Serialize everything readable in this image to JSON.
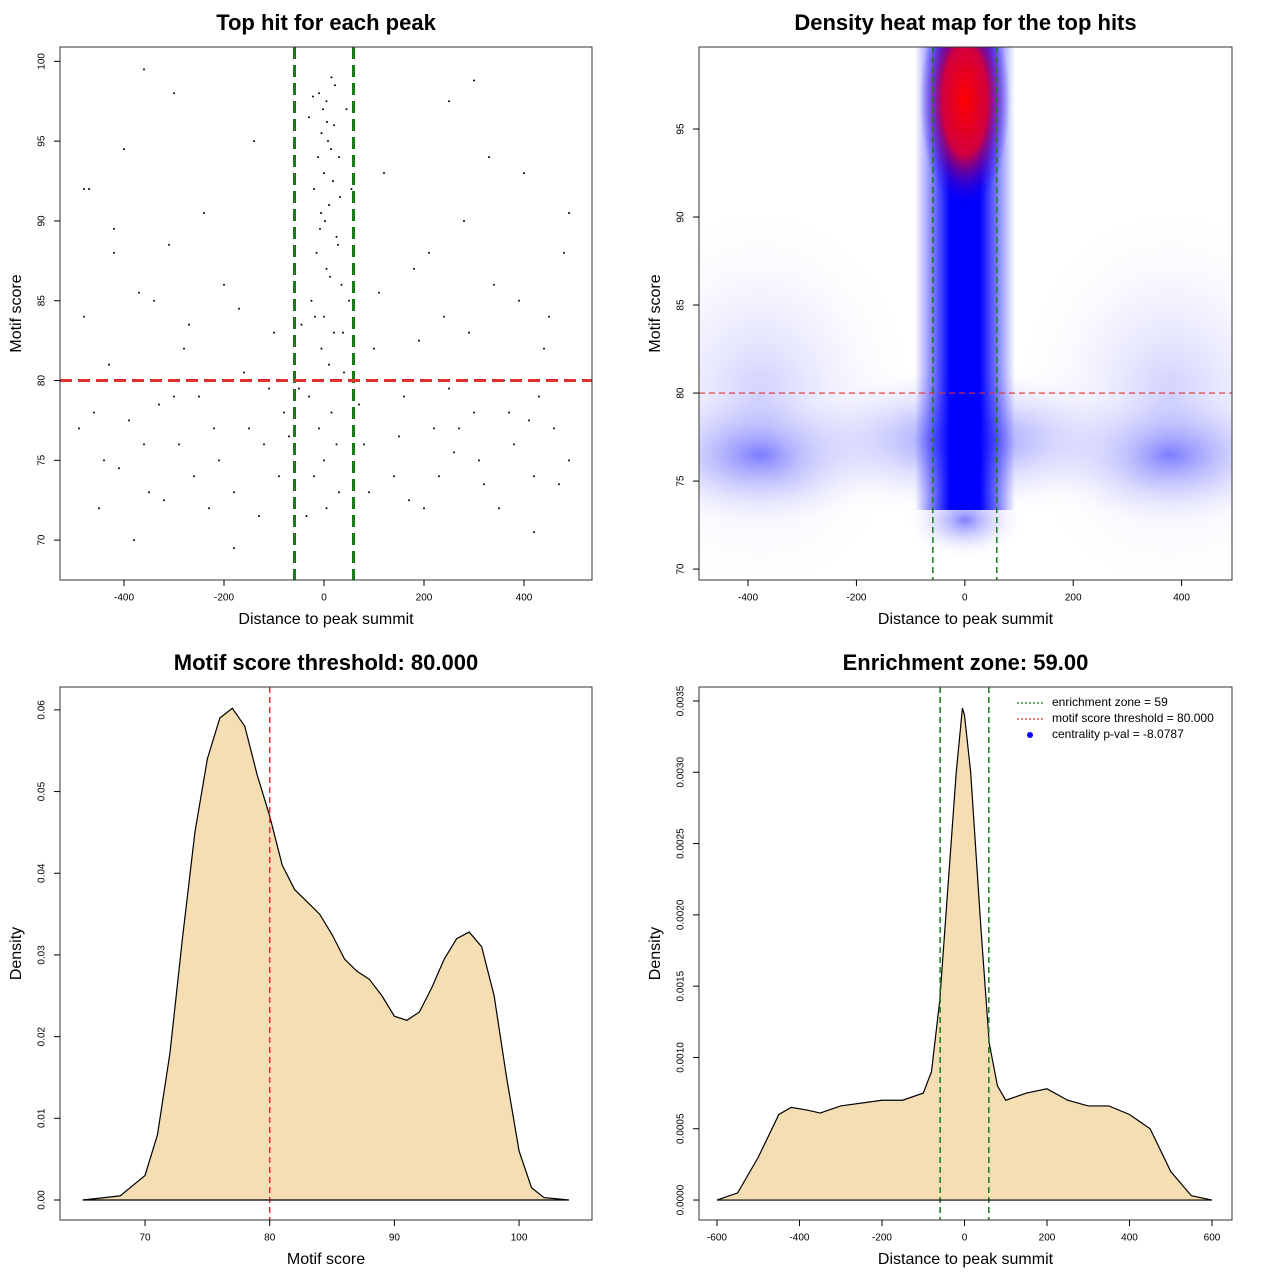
{
  "chart_data": [
    {
      "type": "scatter",
      "title": "Top hit for each peak",
      "x_label": "Distance to peak summit",
      "y_label": "Motif score",
      "xlim": [
        -528,
        536
      ],
      "ylim": [
        67.5,
        100.9
      ],
      "xticks": [
        -400,
        -200,
        0,
        200,
        400
      ],
      "yticks": [
        70,
        75,
        80,
        85,
        90,
        95,
        100
      ],
      "color": "#000000",
      "vlines": [
        -59,
        59
      ],
      "vline_color": "#1a7a1a",
      "hlines": [
        80
      ],
      "hline_color": "#e0302f",
      "x": [
        -10,
        5,
        20,
        -5,
        15,
        0,
        30,
        -20,
        10,
        25,
        -15,
        5,
        35,
        -25,
        0,
        20,
        -5,
        10,
        40,
        -30,
        15,
        -10,
        25,
        0,
        -20,
        30,
        5,
        -35,
        45,
        -30,
        8,
        -12,
        18,
        2,
        -8,
        28,
        12,
        -18,
        38,
        -2,
        22,
        -22,
        6,
        14,
        -6,
        32,
        50,
        -45,
        55,
        -50,
        -480,
        -460,
        -440,
        -420,
        -400,
        -380,
        -360,
        -340,
        -320,
        -300,
        -280,
        -260,
        -240,
        -220,
        -200,
        -180,
        -160,
        -140,
        -120,
        -100,
        -80,
        -60,
        80,
        100,
        120,
        140,
        160,
        180,
        200,
        220,
        240,
        260,
        280,
        300,
        320,
        340,
        360,
        380,
        400,
        420,
        440,
        460,
        480,
        490,
        -490,
        -470,
        -450,
        -430,
        -410,
        -390,
        -370,
        -350,
        -330,
        -310,
        -290,
        -270,
        -250,
        -230,
        -210,
        -190,
        -170,
        -150,
        -130,
        -110,
        -90,
        -70,
        70,
        90,
        110,
        130,
        150,
        170,
        190,
        210,
        230,
        250,
        270,
        290,
        310,
        330,
        350,
        370,
        390,
        410,
        430,
        450,
        470,
        -360,
        -180,
        300,
        -300,
        250,
        -480,
        490,
        -420,
        420,
        -380
      ],
      "values": [
        98,
        97.5,
        96,
        95.5,
        99,
        93,
        94,
        92,
        91,
        89,
        88,
        87,
        86,
        85,
        84,
        83,
        82,
        81,
        80.5,
        79,
        78,
        77,
        76,
        75,
        74,
        73,
        72,
        71.5,
        97,
        96.5,
        95,
        94,
        92.5,
        90,
        89.5,
        88.5,
        86.5,
        84,
        83,
        97,
        98.5,
        97.8,
        96.2,
        94.5,
        90.5,
        91.5,
        85,
        83.5,
        92,
        79.5,
        84,
        78,
        75,
        88,
        94.5,
        80,
        76,
        85,
        72.5,
        79,
        82,
        74,
        90.5,
        77,
        86,
        73,
        80.5,
        95,
        76,
        83,
        78,
        88,
        76,
        82,
        93,
        74,
        79,
        87,
        72,
        77,
        84,
        75.5,
        90,
        78,
        73.5,
        86,
        80,
        76,
        93,
        74,
        82,
        77,
        88,
        75,
        77,
        92,
        72,
        81,
        74.5,
        77.5,
        85.5,
        73,
        78.5,
        88.5,
        76,
        83.5,
        79,
        72,
        75,
        80,
        84.5,
        77,
        71.5,
        79.5,
        74,
        76.5,
        78.5,
        73,
        85.5,
        80,
        76.5,
        72.5,
        82.5,
        88,
        74,
        79.5,
        77,
        83,
        75,
        94,
        72,
        78,
        85,
        77.5,
        79,
        84,
        73.5,
        99.5,
        69.5,
        98.8,
        98,
        97.5,
        92,
        90.5,
        89.5,
        70.5,
        70
      ]
    },
    {
      "type": "heatmap",
      "title": "Density heat map for the top hits",
      "x_label": "Distance to peak summit",
      "y_label": "Motif score",
      "xlim": [
        -490.5,
        493
      ],
      "ylim": [
        69.38,
        99.66
      ],
      "xticks": [
        -400,
        -200,
        0,
        200,
        400
      ],
      "yticks": [
        70,
        75,
        80,
        85,
        90,
        95
      ],
      "vlines": [
        -59,
        59
      ],
      "vline_color": "#1a7a1a",
      "hlines": [
        80
      ],
      "hline_color": "#e0302f"
    },
    {
      "type": "area",
      "title": "Motif score threshold: 80.000",
      "x_label": "Motif score",
      "y_label": "Density",
      "xlim": [
        63.18,
        105.85
      ],
      "ylim": [
        -0.00245,
        0.0628
      ],
      "xticks": [
        70,
        80,
        90,
        100
      ],
      "yticks": [
        {
          "value": 0,
          "label": "0.00"
        },
        {
          "value": 0.01,
          "label": "0.01"
        },
        {
          "value": 0.02,
          "label": "0.02"
        },
        {
          "value": 0.03,
          "label": "0.03"
        },
        {
          "value": 0.04,
          "label": "0.04"
        },
        {
          "value": 0.05,
          "label": "0.05"
        },
        {
          "value": 0.06,
          "label": "0.06"
        }
      ],
      "fill": "#f5deb3",
      "vlines": [
        80
      ],
      "vline_color": "#e0302f",
      "x": [
        65,
        68,
        70,
        71,
        72,
        73,
        74,
        75,
        76,
        77,
        78,
        79,
        80,
        81,
        82,
        83,
        84,
        85,
        86,
        87,
        88,
        89,
        90,
        91,
        92,
        93,
        94,
        95,
        96,
        97,
        98,
        99,
        100,
        101,
        102,
        104
      ],
      "values": [
        0,
        0.0005,
        0.003,
        0.008,
        0.018,
        0.032,
        0.045,
        0.054,
        0.059,
        0.0602,
        0.058,
        0.052,
        0.047,
        0.041,
        0.038,
        0.0365,
        0.035,
        0.0325,
        0.0295,
        0.028,
        0.027,
        0.025,
        0.0225,
        0.022,
        0.023,
        0.026,
        0.0295,
        0.032,
        0.0328,
        0.031,
        0.025,
        0.015,
        0.006,
        0.0015,
        0.0003,
        0
      ]
    },
    {
      "type": "area",
      "title": "Enrichment zone: 59.00",
      "x_label": "Distance to peak summit",
      "y_label": "Density",
      "xlim": [
        -643.6,
        648.5
      ],
      "ylim": [
        -0.00014,
        0.003598
      ],
      "xticks": [
        -600,
        -400,
        -200,
        0,
        200,
        400,
        600
      ],
      "yticks": [
        {
          "value": 0,
          "label": "0.0000"
        },
        {
          "value": 0.0005,
          "label": "0.0005"
        },
        {
          "value": 0.001,
          "label": "0.0010"
        },
        {
          "value": 0.0015,
          "label": "0.0015"
        },
        {
          "value": 0.002,
          "label": "0.0020"
        },
        {
          "value": 0.0025,
          "label": "0.0025"
        },
        {
          "value": 0.003,
          "label": "0.0030"
        },
        {
          "value": 0.0035,
          "label": "0.0035"
        }
      ],
      "fill": "#f5deb3",
      "vlines": [
        -59,
        59
      ],
      "vline_color": "#1a7a1a",
      "x": [
        -600,
        -550,
        -500,
        -450,
        -420,
        -380,
        -350,
        -300,
        -200,
        -150,
        -100,
        -80,
        -60,
        -40,
        -20,
        -5,
        0,
        15,
        40,
        60,
        80,
        100,
        150,
        200,
        250,
        300,
        350,
        400,
        450,
        500,
        550,
        600
      ],
      "values": [
        0,
        5e-05,
        0.0003,
        0.0006,
        0.00065,
        0.00063,
        0.00061,
        0.00066,
        0.0007,
        0.0007,
        0.00075,
        0.0009,
        0.0014,
        0.0022,
        0.003,
        0.00345,
        0.0034,
        0.003,
        0.0019,
        0.0011,
        0.0008,
        0.0007,
        0.00075,
        0.00078,
        0.0007,
        0.00066,
        0.00066,
        0.0006,
        0.0005,
        0.0002,
        3e-05,
        0
      ],
      "legend": [
        {
          "label": "enrichment zone = 59",
          "color": "#1a7a1a",
          "style": "dotted"
        },
        {
          "label": "motif score threshold = 80.000",
          "color": "#e0302f",
          "style": "dotted"
        },
        {
          "label": "centrality p-val = -8.0787",
          "color": "#0000ff",
          "style": "point"
        }
      ]
    }
  ]
}
